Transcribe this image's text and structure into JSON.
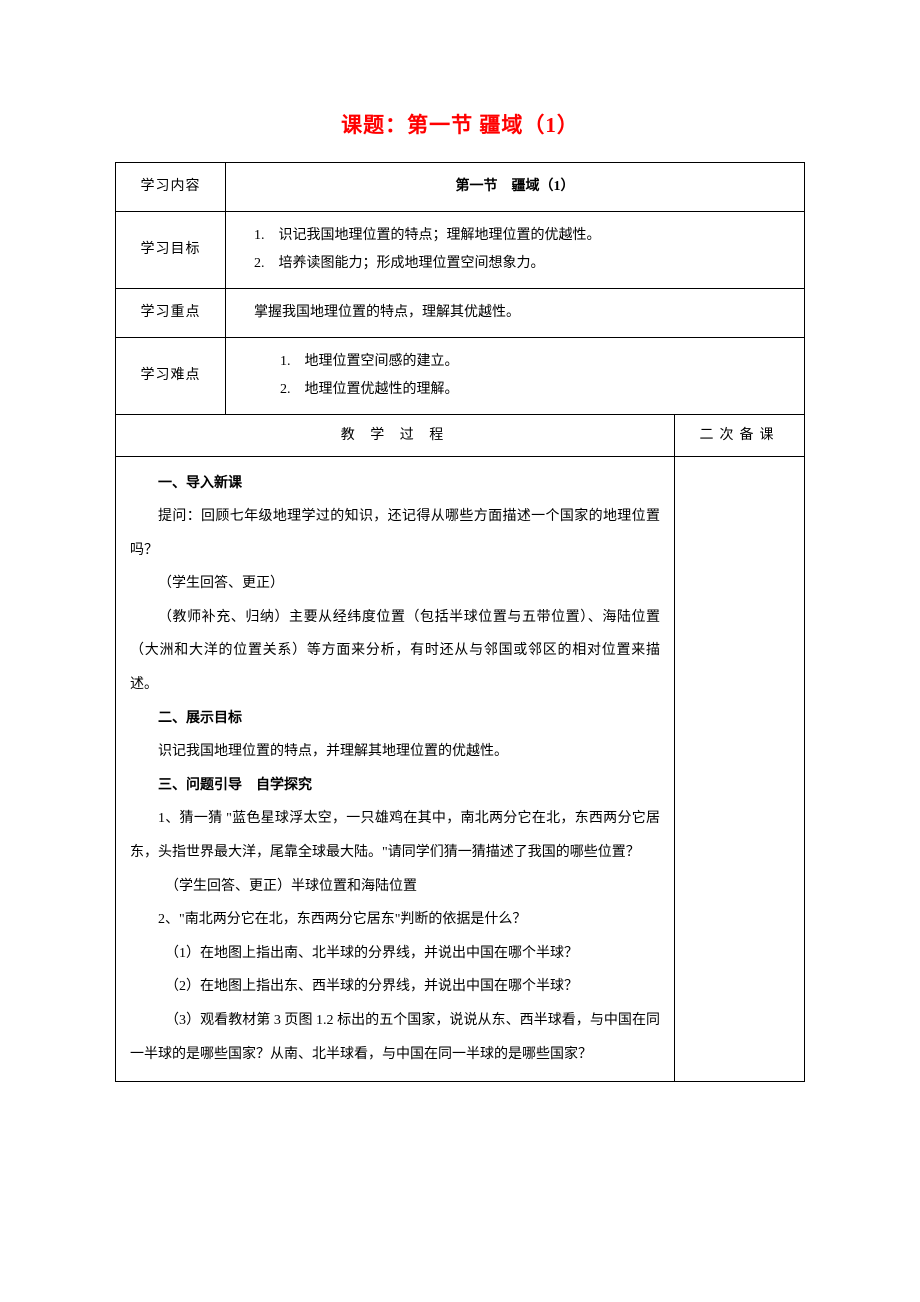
{
  "title": "课题：第一节 疆域（1）",
  "rows": {
    "r1_label": "学习内容",
    "r1_content": "第一节　疆域（1）",
    "r2_label": "学习目标",
    "r2_item1": "1.　识记我国地理位置的特点；理解地理位置的优越性。",
    "r2_item2": "2.　培养读图能力；形成地理位置空间想象力。",
    "r3_label": "学习重点",
    "r3_content": "掌握我国地理位置的特点，理解其优越性。",
    "r4_label": "学习难点",
    "r4_item1": "1.　地理位置空间感的建立。",
    "r4_item2": "2.　地理位置优越性的理解。",
    "process_header": "教 学 过 程",
    "notes_header": "二次备课"
  },
  "body": {
    "s1_header": "一、导入新课",
    "s1_p1": "提问：回顾七年级地理学过的知识，还记得从哪些方面描述一个国家的地理位置吗？",
    "s1_p2": "（学生回答、更正）",
    "s1_p3": "（教师补充、归纳）主要从经纬度位置（包括半球位置与五带位置）、海陆位置（大洲和大洋的位置关系）等方面来分析，有时还从与邻国或邻区的相对位置来描述。",
    "s2_header": "二、展示目标",
    "s2_p1": "识记我国地理位置的特点，并理解其地理位置的优越性。",
    "s3_header": "三、问题引导　自学探究",
    "s3_p1": "1、猜一猜 \"蓝色星球浮太空，一只雄鸡在其中，南北两分它在北，东西两分它居东，头指世界最大洋，尾靠全球最大陆。\"请同学们猜一猜描述了我国的哪些位置？",
    "s3_p2": "（学生回答、更正）半球位置和海陆位置",
    "s3_p3": "2、\"南北两分它在北，东西两分它居东\"判断的依据是什么？",
    "s3_p4": "（1）在地图上指出南、北半球的分界线，并说出中国在哪个半球？",
    "s3_p5": "（2）在地图上指出东、西半球的分界线，并说出中国在哪个半球？",
    "s3_p6": "（3）观看教材第 3 页图 1.2 标出的五个国家，说说从东、西半球看，与中国在同一半球的是哪些国家？从南、北半球看，与中国在同一半球的是哪些国家？"
  },
  "colors": {
    "title_color": "#ff0000",
    "border_color": "#000000",
    "text_color": "#000000",
    "background": "#ffffff"
  }
}
